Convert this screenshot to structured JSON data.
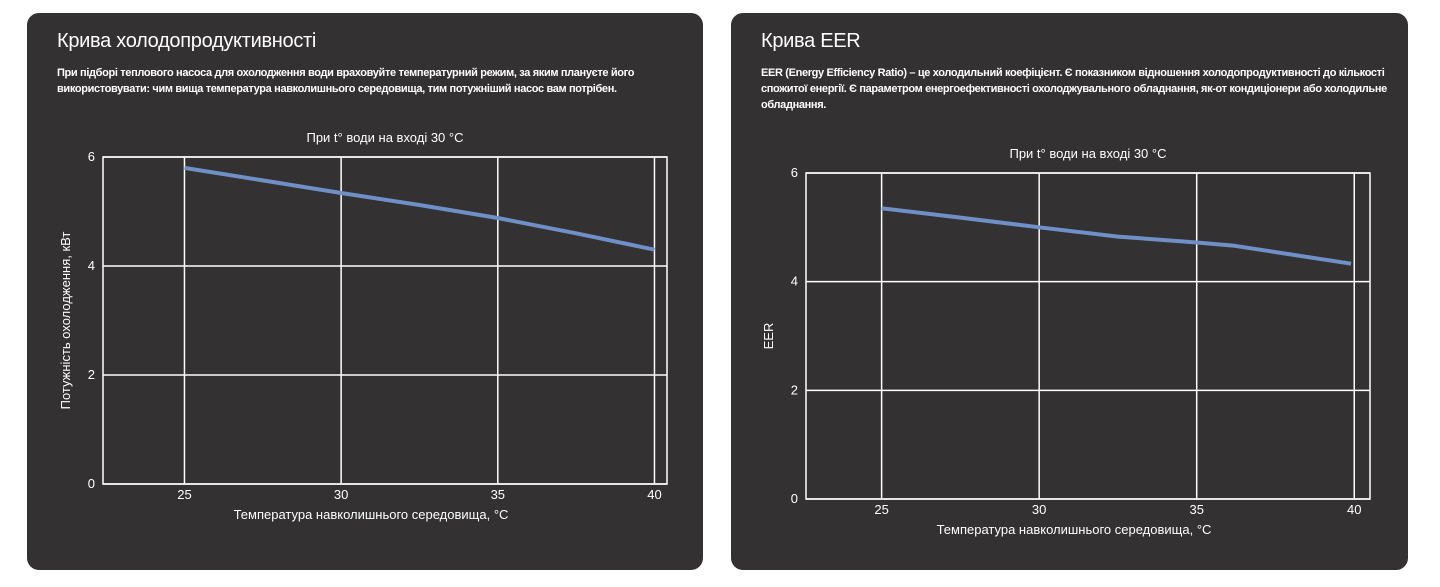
{
  "cards": [
    {
      "title": "Крива холодопродуктивності",
      "description": "При підборі теплового насоса для охолодження води враховуйте температурний режим, за яким плануєте його використовувати: чим вища температура навколишнього середовища, тим потужніший насос вам потрібен."
    },
    {
      "title": "Крива EER",
      "description": "EER (Energy Efficiency Ratio) – це холодильний коефіцієнт. Є показником відношення холодопродуктивності до кількості спожитої енергії. Є параметром енергоефективності охолоджувального обладнання, як-от кондиціонери або холодильне обладнання."
    }
  ],
  "chart_data": [
    {
      "type": "line",
      "title": "При t° води на вході 30 °C",
      "xlabel": "Температура навколишнього середовища, °C",
      "ylabel": "Потужність охолодження, кВт",
      "xlim": [
        22.4,
        40.4
      ],
      "ylim": [
        0,
        6
      ],
      "xticks": [
        25,
        30,
        35,
        40
      ],
      "yticks": [
        0,
        2,
        4,
        6
      ],
      "grid": true,
      "series": [
        {
          "name": "Cooling capacity",
          "color": "#6f8fc7",
          "x": [
            25,
            27.5,
            30,
            32.5,
            35,
            37.5,
            40
          ],
          "y": [
            5.8,
            5.57,
            5.34,
            5.12,
            4.88,
            4.6,
            4.3
          ]
        }
      ]
    },
    {
      "type": "line",
      "title": "При t° води на вході 30 °C",
      "xlabel": "Температура навколишнього середовища, °C",
      "ylabel": "EER",
      "xlim": [
        22.6,
        40.5
      ],
      "ylim": [
        0,
        6
      ],
      "xticks": [
        25,
        30,
        35,
        40
      ],
      "yticks": [
        0,
        2,
        4,
        6
      ],
      "grid": true,
      "series": [
        {
          "name": "EER",
          "color": "#6f8fc7",
          "x": [
            25,
            27.5,
            30,
            32.5,
            35,
            36.2,
            38,
            39.9
          ],
          "y": [
            5.35,
            5.18,
            5.0,
            4.83,
            4.72,
            4.66,
            4.5,
            4.33
          ]
        }
      ]
    }
  ]
}
